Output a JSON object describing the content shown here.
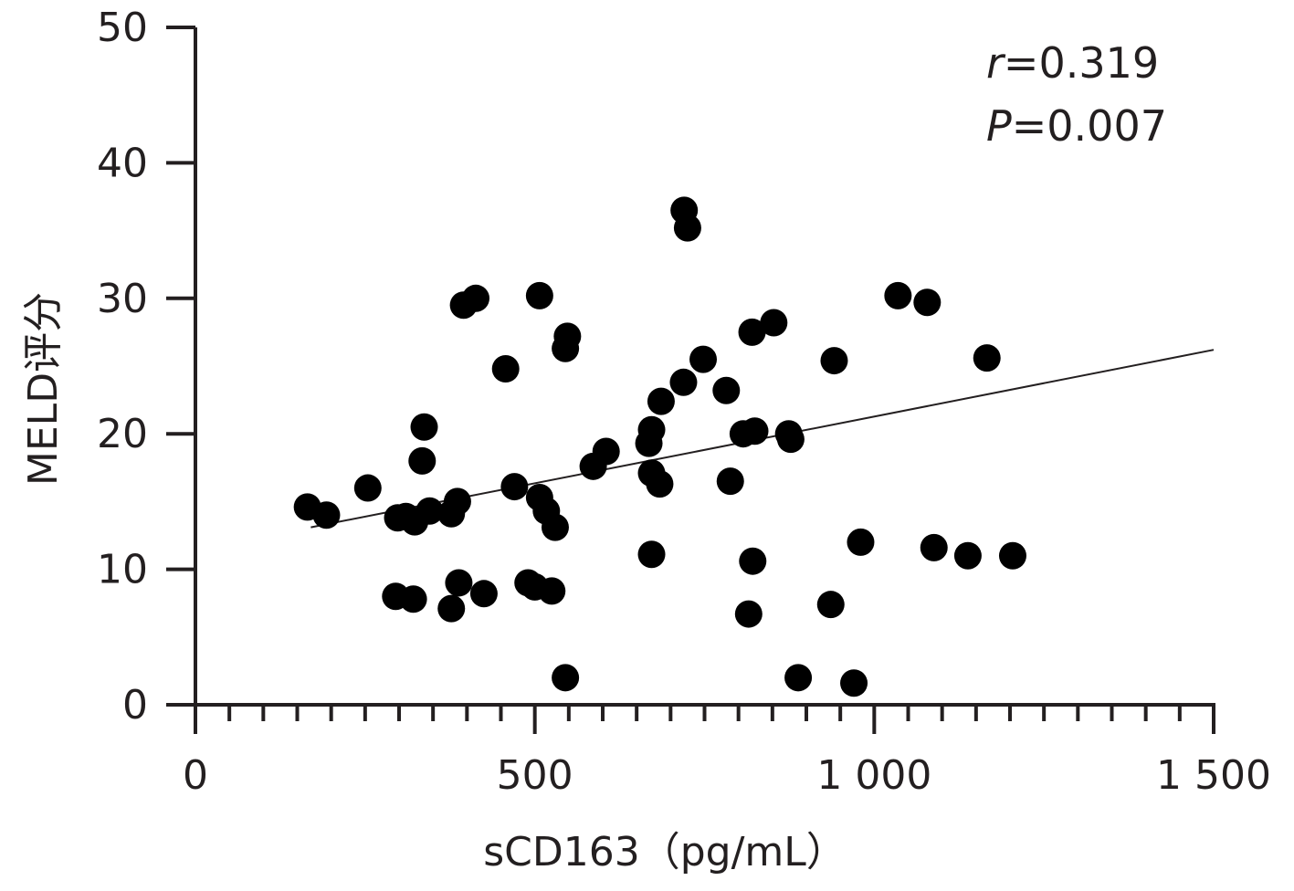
{
  "chart_data": {
    "type": "scatter",
    "xlabel": "sCD163（pg/mL）",
    "ylabel": "MELD评分",
    "xlim": [
      0,
      1500
    ],
    "ylim": [
      0,
      50
    ],
    "x_ticks": [
      0,
      500,
      1000,
      1500
    ],
    "x_tick_labels": [
      "0",
      "500",
      "1 000",
      "1 500"
    ],
    "x_minor_step": 50,
    "y_ticks": [
      0,
      10,
      20,
      30,
      40,
      50
    ],
    "y_tick_labels": [
      "0",
      "10",
      "20",
      "30",
      "40",
      "50"
    ],
    "grid": false,
    "annotations": {
      "r_symbol": "r",
      "r_value": "=0.319",
      "p_symbol": "P",
      "p_value": "=0.007"
    },
    "trendline": {
      "x": [
        170,
        1500
      ],
      "y": [
        13.1,
        26.2
      ]
    },
    "points": [
      {
        "x": 165,
        "y": 14.6
      },
      {
        "x": 193,
        "y": 14.0
      },
      {
        "x": 254,
        "y": 16.0
      },
      {
        "x": 298,
        "y": 13.8
      },
      {
        "x": 310,
        "y": 13.9
      },
      {
        "x": 323,
        "y": 13.5
      },
      {
        "x": 345,
        "y": 14.3
      },
      {
        "x": 377,
        "y": 14.1
      },
      {
        "x": 386,
        "y": 15.0
      },
      {
        "x": 334,
        "y": 18.0
      },
      {
        "x": 337,
        "y": 20.5
      },
      {
        "x": 295,
        "y": 8.0
      },
      {
        "x": 321,
        "y": 7.8
      },
      {
        "x": 377,
        "y": 7.1
      },
      {
        "x": 388,
        "y": 9.0
      },
      {
        "x": 425,
        "y": 8.2
      },
      {
        "x": 395,
        "y": 29.5
      },
      {
        "x": 413,
        "y": 30.0
      },
      {
        "x": 457,
        "y": 24.8
      },
      {
        "x": 470,
        "y": 16.1
      },
      {
        "x": 507,
        "y": 15.3
      },
      {
        "x": 517,
        "y": 14.3
      },
      {
        "x": 530,
        "y": 13.1
      },
      {
        "x": 490,
        "y": 9.0
      },
      {
        "x": 500,
        "y": 8.7
      },
      {
        "x": 525,
        "y": 8.4
      },
      {
        "x": 545,
        "y": 2.0
      },
      {
        "x": 507,
        "y": 30.2
      },
      {
        "x": 548,
        "y": 27.2
      },
      {
        "x": 545,
        "y": 26.3
      },
      {
        "x": 586,
        "y": 17.6
      },
      {
        "x": 605,
        "y": 18.7
      },
      {
        "x": 672,
        "y": 20.3
      },
      {
        "x": 668,
        "y": 19.3
      },
      {
        "x": 672,
        "y": 17.1
      },
      {
        "x": 684,
        "y": 16.3
      },
      {
        "x": 686,
        "y": 22.4
      },
      {
        "x": 672,
        "y": 11.1
      },
      {
        "x": 719,
        "y": 23.8
      },
      {
        "x": 720,
        "y": 36.5
      },
      {
        "x": 725,
        "y": 35.2
      },
      {
        "x": 748,
        "y": 25.5
      },
      {
        "x": 782,
        "y": 23.2
      },
      {
        "x": 788,
        "y": 16.5
      },
      {
        "x": 807,
        "y": 20.0
      },
      {
        "x": 824,
        "y": 20.2
      },
      {
        "x": 820,
        "y": 27.5
      },
      {
        "x": 852,
        "y": 28.2
      },
      {
        "x": 821,
        "y": 10.6
      },
      {
        "x": 815,
        "y": 6.7
      },
      {
        "x": 874,
        "y": 20.0
      },
      {
        "x": 877,
        "y": 19.6
      },
      {
        "x": 888,
        "y": 2.0
      },
      {
        "x": 936,
        "y": 7.4
      },
      {
        "x": 941,
        "y": 25.4
      },
      {
        "x": 970,
        "y": 1.6
      },
      {
        "x": 980,
        "y": 12.0
      },
      {
        "x": 1035,
        "y": 30.2
      },
      {
        "x": 1078,
        "y": 29.7
      },
      {
        "x": 1088,
        "y": 11.6
      },
      {
        "x": 1138,
        "y": 11.0
      },
      {
        "x": 1166,
        "y": 25.6
      },
      {
        "x": 1204,
        "y": 11.0
      }
    ]
  }
}
